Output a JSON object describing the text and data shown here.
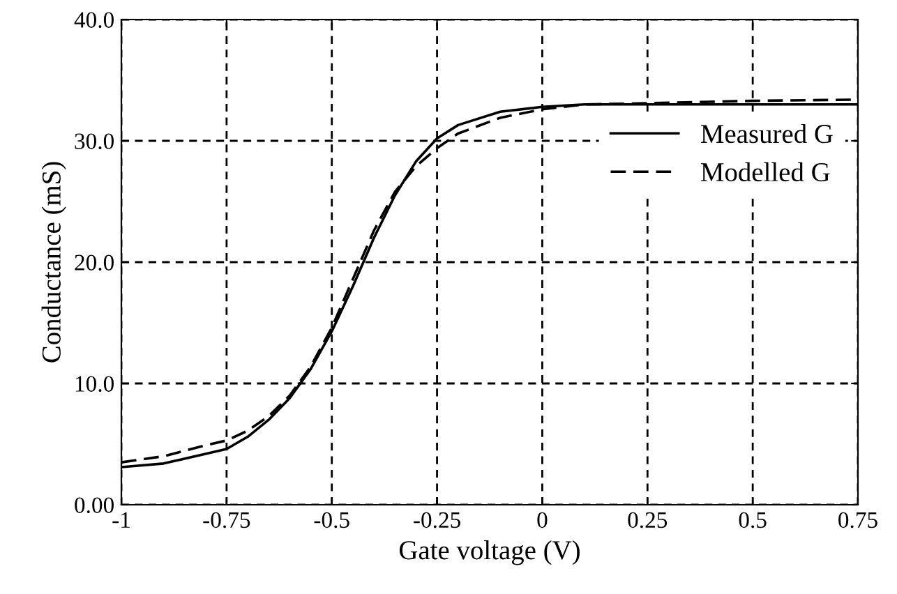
{
  "chart_data": {
    "type": "line",
    "xlabel": "Gate voltage (V)",
    "ylabel": "Conductance (mS)",
    "x": [
      -1,
      -0.9,
      -0.8,
      -0.75,
      -0.7,
      -0.65,
      -0.6,
      -0.55,
      -0.5,
      -0.45,
      -0.4,
      -0.35,
      -0.3,
      -0.25,
      -0.2,
      -0.1,
      0,
      0.1,
      0.25,
      0.5,
      0.75
    ],
    "series": [
      {
        "name": "Measured G",
        "color": "#000000",
        "line_style": "solid",
        "values": [
          3.1,
          3.4,
          4.2,
          4.6,
          5.6,
          7.0,
          8.8,
          11.2,
          14.3,
          18,
          22,
          25.5,
          28.3,
          30.2,
          31.3,
          32.4,
          32.8,
          33.0,
          33.0,
          33.0,
          33.0
        ]
      },
      {
        "name": "Modelled G",
        "color": "#000000",
        "line_style": "dashed",
        "values": [
          3.5,
          4.0,
          4.9,
          5.3,
          6.1,
          7.3,
          9.0,
          11.4,
          14.6,
          18.6,
          22.6,
          25.8,
          27.9,
          29.4,
          30.6,
          31.9,
          32.6,
          33.0,
          33.1,
          33.3,
          33.4
        ]
      }
    ],
    "xlim": [
      -1,
      0.75
    ],
    "xticks": [
      -1,
      -0.75,
      -0.5,
      -0.25,
      0,
      0.25,
      0.5,
      0.75
    ],
    "ylim": [
      0,
      40
    ],
    "yticks": [
      {
        "value": 0,
        "label": "0.00"
      },
      {
        "value": 10,
        "label": "10.0"
      },
      {
        "value": 20,
        "label": "20.0"
      },
      {
        "value": 30,
        "label": "30.0"
      },
      {
        "value": 40,
        "label": "40.0"
      }
    ],
    "grid": true,
    "legend": "right",
    "marker": "none"
  }
}
